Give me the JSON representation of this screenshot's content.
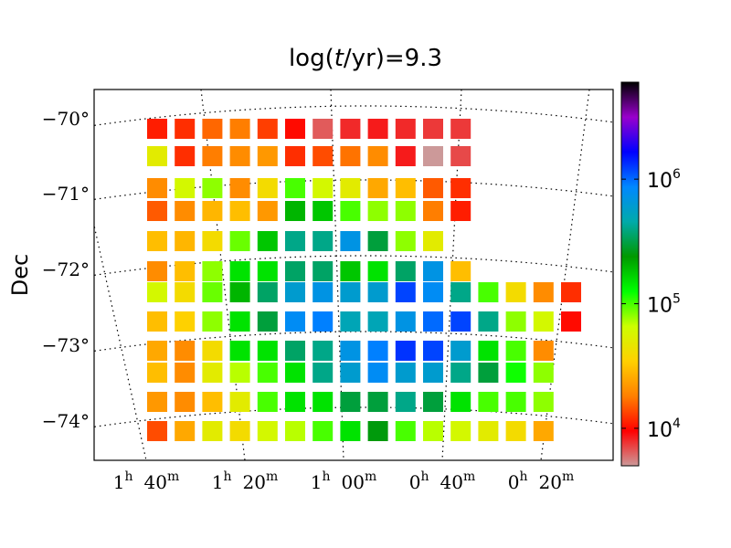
{
  "chart_data": {
    "type": "heatmap",
    "title": "log(t/yr)=9.3",
    "title_parts": {
      "pre": "log(",
      "italic": "t",
      "post": "/yr)=9.3"
    },
    "ylabel": "Dec",
    "xlabel": "",
    "dec_ticks": [
      {
        "value": -70,
        "label": "−70°"
      },
      {
        "value": -71,
        "label": "−71°"
      },
      {
        "value": -72,
        "label": "−72°"
      },
      {
        "value": -73,
        "label": "−73°"
      },
      {
        "value": -74,
        "label": "−74°"
      }
    ],
    "ra_ticks": [
      {
        "h": "1",
        "m": "40"
      },
      {
        "h": "1",
        "m": "20"
      },
      {
        "h": "1",
        "m": "00"
      },
      {
        "h": "0",
        "m": "40"
      },
      {
        "h": "0",
        "m": "20"
      }
    ],
    "colorbar": {
      "scale": "log",
      "range": [
        5000,
        6000000
      ],
      "ticks": [
        {
          "value": 10000,
          "base": "10",
          "exp": "4"
        },
        {
          "value": 100000,
          "base": "10",
          "exp": "5"
        },
        {
          "value": 1000000,
          "base": "10",
          "exp": "6"
        }
      ],
      "colormap": [
        "#cc9999",
        "#ff0000",
        "#ff8000",
        "#ffd000",
        "#ccff00",
        "#00ff00",
        "#009900",
        "#00aaaa",
        "#0088ff",
        "#0000ff",
        "#9900cc",
        "#000000"
      ]
    },
    "grid": true,
    "cells": [
      [
        11000,
        12000,
        16000,
        18000,
        13000,
        10000,
        6500,
        8000,
        8500,
        8000,
        7500,
        7500
      ],
      [
        50000,
        12000,
        18000,
        20000,
        22000,
        12000,
        14000,
        17000,
        20000,
        8500,
        5000,
        7000
      ],
      [
        20000,
        60000,
        80000,
        20000,
        40000,
        100000,
        60000,
        50000,
        25000,
        30000,
        15000,
        12000
      ],
      [
        15000,
        20000,
        28000,
        30000,
        22000,
        200000,
        180000,
        100000,
        80000,
        80000,
        18000,
        11000
      ],
      [
        30000,
        28000,
        40000,
        90000,
        180000,
        400000,
        400000,
        700000,
        300000,
        80000,
        50000
      ],
      [
        20000,
        30000,
        80000,
        150000,
        150000,
        350000,
        350000,
        180000,
        150000,
        350000,
        700000,
        30000
      ],
      [
        60000,
        40000,
        90000,
        200000,
        350000,
        600000,
        700000,
        600000,
        600000,
        1200000,
        800000,
        400000,
        100000,
        40000,
        20000,
        12000
      ],
      [
        30000,
        35000,
        80000,
        150000,
        300000,
        800000,
        900000,
        500000,
        500000,
        700000,
        1000000,
        1200000,
        400000,
        80000,
        60000,
        10000
      ],
      [
        25000,
        20000,
        40000,
        150000,
        150000,
        350000,
        400000,
        700000,
        900000,
        1300000,
        1200000,
        600000,
        150000,
        100000,
        20000
      ],
      [
        30000,
        20000,
        50000,
        70000,
        100000,
        150000,
        400000,
        600000,
        800000,
        600000,
        600000,
        400000,
        300000,
        120000,
        80000
      ],
      [
        22000,
        20000,
        30000,
        50000,
        100000,
        150000,
        150000,
        300000,
        300000,
        400000,
        300000,
        150000,
        100000,
        100000,
        80000
      ],
      [
        14000,
        25000,
        50000,
        40000,
        60000,
        70000,
        100000,
        150000,
        250000,
        100000,
        70000,
        60000,
        50000,
        40000,
        25000
      ]
    ]
  }
}
